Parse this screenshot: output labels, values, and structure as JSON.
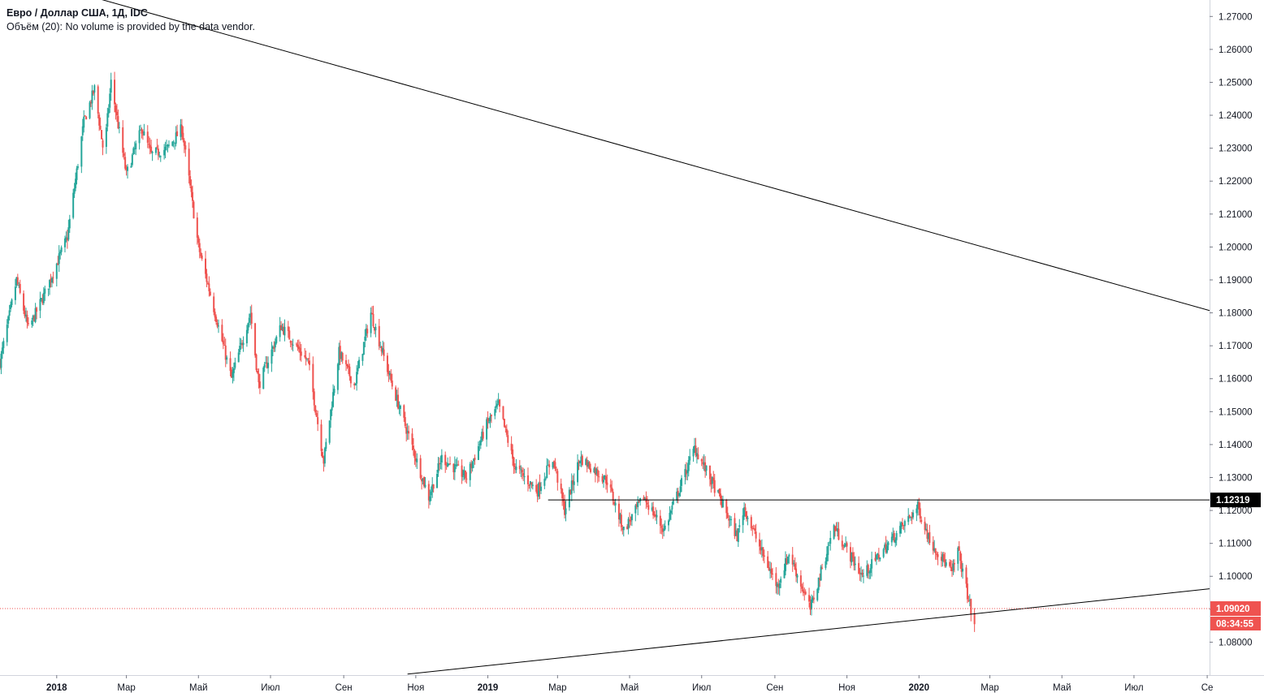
{
  "legend": {
    "title": "Евро / Доллар США, 1Д, IDC",
    "volume": "Объём (20): No volume is provided by the data vendor."
  },
  "colors": {
    "up": "#26a69a",
    "down": "#ef5350",
    "line": "#000000",
    "last_price": "#ef5350",
    "level_tag": "#000000"
  },
  "chart_data": {
    "type": "candlestick",
    "title": "Евро / Доллар США, 1Д, IDC",
    "ylim": [
      1.07,
      1.275
    ],
    "xlim": [
      "2017-11-14",
      "2020-09-03"
    ],
    "y_ticks": [
      "1.08000",
      "1.09000",
      "1.10000",
      "1.11000",
      "1.12000",
      "1.13000",
      "1.14000",
      "1.15000",
      "1.16000",
      "1.17000",
      "1.18000",
      "1.19000",
      "1.20000",
      "1.21000",
      "1.22000",
      "1.23000",
      "1.24000",
      "1.25000",
      "1.26000",
      "1.27000"
    ],
    "x_ticks": [
      {
        "date": "2018-01-01",
        "label": "2018",
        "bold": true
      },
      {
        "date": "2018-03-01",
        "label": "Мар",
        "bold": false
      },
      {
        "date": "2018-05-01",
        "label": "Май",
        "bold": false
      },
      {
        "date": "2018-07-01",
        "label": "Июл",
        "bold": false
      },
      {
        "date": "2018-09-01",
        "label": "Сен",
        "bold": false
      },
      {
        "date": "2018-11-01",
        "label": "Ноя",
        "bold": false
      },
      {
        "date": "2019-01-01",
        "label": "2019",
        "bold": true
      },
      {
        "date": "2019-03-01",
        "label": "Мар",
        "bold": false
      },
      {
        "date": "2019-05-01",
        "label": "Май",
        "bold": false
      },
      {
        "date": "2019-07-01",
        "label": "Июл",
        "bold": false
      },
      {
        "date": "2019-09-01",
        "label": "Сен",
        "bold": false
      },
      {
        "date": "2019-11-01",
        "label": "Ноя",
        "bold": false
      },
      {
        "date": "2020-01-01",
        "label": "2020",
        "bold": true
      },
      {
        "date": "2020-03-01",
        "label": "Мар",
        "bold": false
      },
      {
        "date": "2020-05-01",
        "label": "Май",
        "bold": false
      },
      {
        "date": "2020-07-01",
        "label": "Июл",
        "bold": false
      },
      {
        "date": "2020-09-01",
        "label": "Се",
        "bold": false
      }
    ],
    "price_path": [
      [
        "2017-11-14",
        1.165
      ],
      [
        "2017-11-28",
        1.19
      ],
      [
        "2017-12-08",
        1.175
      ],
      [
        "2017-12-22",
        1.186
      ],
      [
        "2018-01-10",
        1.203
      ],
      [
        "2018-01-24",
        1.238
      ],
      [
        "2018-02-02",
        1.248
      ],
      [
        "2018-02-10",
        1.228
      ],
      [
        "2018-02-16",
        1.25
      ],
      [
        "2018-03-01",
        1.222
      ],
      [
        "2018-03-14",
        1.236
      ],
      [
        "2018-03-22",
        1.228
      ],
      [
        "2018-04-05",
        1.23
      ],
      [
        "2018-04-17",
        1.236
      ],
      [
        "2018-05-01",
        1.2
      ],
      [
        "2018-05-29",
        1.16
      ],
      [
        "2018-06-14",
        1.18
      ],
      [
        "2018-06-21",
        1.158
      ],
      [
        "2018-07-10",
        1.176
      ],
      [
        "2018-08-02",
        1.165
      ],
      [
        "2018-08-15",
        1.135
      ],
      [
        "2018-08-28",
        1.168
      ],
      [
        "2018-09-10",
        1.158
      ],
      [
        "2018-09-24",
        1.18
      ],
      [
        "2018-10-12",
        1.158
      ],
      [
        "2018-10-31",
        1.137
      ],
      [
        "2018-11-12",
        1.124
      ],
      [
        "2018-11-23",
        1.136
      ],
      [
        "2018-12-14",
        1.13
      ],
      [
        "2018-12-31",
        1.146
      ],
      [
        "2019-01-10",
        1.152
      ],
      [
        "2019-01-24",
        1.133
      ],
      [
        "2019-02-12",
        1.126
      ],
      [
        "2019-02-25",
        1.136
      ],
      [
        "2019-03-07",
        1.12
      ],
      [
        "2019-03-20",
        1.136
      ],
      [
        "2019-04-12",
        1.129
      ],
      [
        "2019-04-26",
        1.114
      ],
      [
        "2019-05-13",
        1.124
      ],
      [
        "2019-05-30",
        1.114
      ],
      [
        "2019-06-25",
        1.139
      ],
      [
        "2019-07-12",
        1.127
      ],
      [
        "2019-07-31",
        1.112
      ],
      [
        "2019-08-06",
        1.121
      ],
      [
        "2019-08-20",
        1.108
      ],
      [
        "2019-09-03",
        1.097
      ],
      [
        "2019-09-13",
        1.107
      ],
      [
        "2019-10-01",
        1.09
      ],
      [
        "2019-10-21",
        1.115
      ],
      [
        "2019-11-14",
        1.1
      ],
      [
        "2019-12-13",
        1.113
      ],
      [
        "2019-12-31",
        1.121
      ],
      [
        "2020-01-10",
        1.111
      ],
      [
        "2020-01-29",
        1.101
      ],
      [
        "2020-02-03",
        1.108
      ],
      [
        "2020-02-17",
        1.0845
      ]
    ],
    "last_price": "1.09020",
    "last_price_value": 1.0902,
    "countdown": "08:34:55",
    "horizontal_level": {
      "label": "1.12319",
      "value": 1.12319,
      "from": "2019-02-21"
    },
    "trendlines": [
      {
        "name": "upper-trendline",
        "from": [
          "2017-11-14",
          1.2838
        ],
        "to": [
          "2020-09-03",
          1.1807
        ]
      },
      {
        "name": "lower-trendline",
        "from": [
          "2018-10-25",
          1.0703
        ],
        "to": [
          "2020-09-03",
          1.0962
        ]
      }
    ]
  }
}
